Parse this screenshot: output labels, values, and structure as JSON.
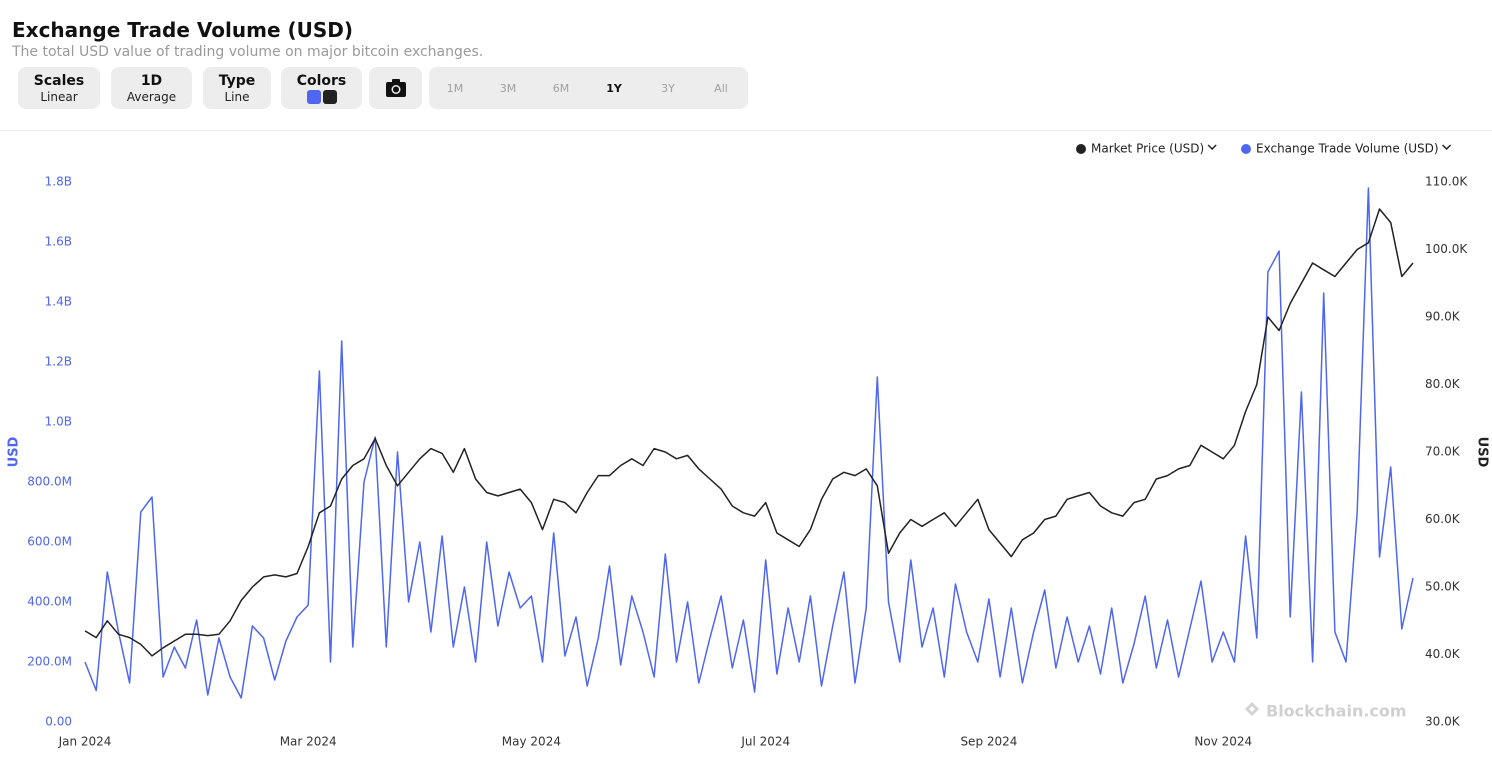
{
  "ui": {
    "title": "Exchange Trade Volume (USD)",
    "subtitle": "The total USD value of trading volume on major bitcoin exchanges.",
    "controls": [
      {
        "label": "Scales",
        "value": "Linear"
      },
      {
        "label": "1D",
        "value": "Average"
      },
      {
        "label": "Type",
        "value": "Line"
      }
    ],
    "colors_label": "Colors",
    "ranges": [
      "1M",
      "3M",
      "6M",
      "1Y",
      "3Y",
      "All"
    ],
    "watermark": "Blockchain.com"
  },
  "chart_data": {
    "type": "line",
    "y_label": "USD",
    "y2_label": "USD",
    "categories": [
      "Jan 2024",
      null,
      null,
      null,
      null,
      null,
      null,
      null,
      null,
      null,
      null,
      null,
      null,
      null,
      null,
      null,
      null,
      null,
      null,
      null,
      "Mar 2024",
      null,
      null,
      null,
      null,
      null,
      null,
      null,
      null,
      null,
      null,
      null,
      null,
      null,
      null,
      null,
      null,
      null,
      null,
      null,
      "May 2024",
      null,
      null,
      null,
      null,
      null,
      null,
      null,
      null,
      null,
      null,
      null,
      null,
      null,
      null,
      null,
      null,
      null,
      null,
      null,
      null,
      "Jul 2024",
      null,
      null,
      null,
      null,
      null,
      null,
      null,
      null,
      null,
      null,
      null,
      null,
      null,
      null,
      null,
      null,
      null,
      null,
      null,
      "Sep 2024",
      null,
      null,
      null,
      null,
      null,
      null,
      null,
      null,
      null,
      null,
      null,
      null,
      null,
      null,
      null,
      null,
      null,
      null,
      null,
      null,
      "Nov 2024",
      null,
      null,
      null,
      null,
      null,
      null,
      null,
      null,
      null,
      null,
      null,
      null,
      null,
      null,
      null,
      null,
      null
    ],
    "series": [
      {
        "name": "Market Price (USD)",
        "color": "#222222",
        "axis": "y2",
        "values": [
          43500,
          42500,
          45000,
          43000,
          42500,
          41500,
          39800,
          41000,
          42000,
          43000,
          43000,
          42800,
          43000,
          45000,
          48000,
          50000,
          51500,
          51800,
          51500,
          52000,
          56000,
          61000,
          62000,
          66000,
          68000,
          69000,
          72000,
          68000,
          65000,
          67000,
          69000,
          70500,
          69800,
          67000,
          70500,
          66000,
          64000,
          63500,
          64000,
          64500,
          62500,
          58500,
          63000,
          62500,
          61000,
          64000,
          66500,
          66500,
          68000,
          69000,
          68000,
          70500,
          70000,
          69000,
          69500,
          67500,
          66000,
          64500,
          62000,
          61000,
          60500,
          62500,
          58000,
          57000,
          56000,
          58500,
          63000,
          66000,
          67000,
          66500,
          67500,
          65000,
          55000,
          58000,
          60000,
          59000,
          60000,
          61000,
          59000,
          61000,
          63000,
          58500,
          56500,
          54500,
          57000,
          58000,
          60000,
          60500,
          63000,
          63500,
          64000,
          62000,
          61000,
          60500,
          62500,
          63000,
          66000,
          66500,
          67500,
          68000,
          71000,
          70000,
          69000,
          71000,
          76000,
          80000,
          90000,
          88000,
          92000,
          95000,
          98000,
          97000,
          96000,
          98000,
          100000,
          101000,
          106000,
          104000,
          96000,
          98000
        ]
      },
      {
        "name": "Exchange Trade Volume (USD)",
        "color": "#4f66f0",
        "axis": "y",
        "values": [
          200000000,
          105000000,
          500000000,
          300000000,
          130000000,
          700000000,
          750000000,
          150000000,
          250000000,
          180000000,
          340000000,
          90000000,
          280000000,
          150000000,
          80000000,
          320000000,
          280000000,
          140000000,
          270000000,
          350000000,
          390000000,
          1170000000,
          200000000,
          1270000000,
          250000000,
          800000000,
          950000000,
          250000000,
          900000000,
          400000000,
          600000000,
          300000000,
          620000000,
          250000000,
          450000000,
          200000000,
          600000000,
          320000000,
          500000000,
          380000000,
          420000000,
          200000000,
          630000000,
          220000000,
          350000000,
          120000000,
          280000000,
          520000000,
          190000000,
          420000000,
          300000000,
          150000000,
          560000000,
          200000000,
          400000000,
          130000000,
          280000000,
          420000000,
          180000000,
          340000000,
          100000000,
          540000000,
          160000000,
          380000000,
          200000000,
          420000000,
          120000000,
          320000000,
          500000000,
          130000000,
          380000000,
          1150000000,
          400000000,
          200000000,
          540000000,
          250000000,
          380000000,
          150000000,
          460000000,
          300000000,
          200000000,
          410000000,
          150000000,
          380000000,
          130000000,
          300000000,
          440000000,
          180000000,
          350000000,
          200000000,
          320000000,
          160000000,
          380000000,
          130000000,
          260000000,
          420000000,
          180000000,
          340000000,
          150000000,
          310000000,
          470000000,
          200000000,
          300000000,
          200000000,
          620000000,
          280000000,
          1500000000,
          1570000000,
          350000000,
          1100000000,
          200000000,
          1430000000,
          300000000,
          200000000,
          700000000,
          1780000000,
          550000000,
          850000000,
          310000000,
          480000000
        ]
      }
    ],
    "ylim": [
      0,
      1800000000
    ],
    "yticks": [
      {
        "value": 0,
        "label": "0.00"
      },
      {
        "value": 200000000,
        "label": "200.0M"
      },
      {
        "value": 400000000,
        "label": "400.0M"
      },
      {
        "value": 600000000,
        "label": "600.0M"
      },
      {
        "value": 800000000,
        "label": "800.0M"
      },
      {
        "value": 1000000000,
        "label": "1.0B"
      },
      {
        "value": 1200000000,
        "label": "1.2B"
      },
      {
        "value": 1400000000,
        "label": "1.4B"
      },
      {
        "value": 1600000000,
        "label": "1.6B"
      },
      {
        "value": 1800000000,
        "label": "1.8B"
      }
    ],
    "y2lim": [
      30000,
      110000
    ],
    "y2ticks": [
      {
        "value": 30000,
        "label": "30.0K"
      },
      {
        "value": 40000,
        "label": "40.0K"
      },
      {
        "value": 50000,
        "label": "50.0K"
      },
      {
        "value": 60000,
        "label": "60.0K"
      },
      {
        "value": 70000,
        "label": "70.0K"
      },
      {
        "value": 80000,
        "label": "80.0K"
      },
      {
        "value": 90000,
        "label": "90.0K"
      },
      {
        "value": 100000,
        "label": "100.0K"
      },
      {
        "value": 110000,
        "label": "110.0K"
      }
    ],
    "legend": "top-right"
  }
}
